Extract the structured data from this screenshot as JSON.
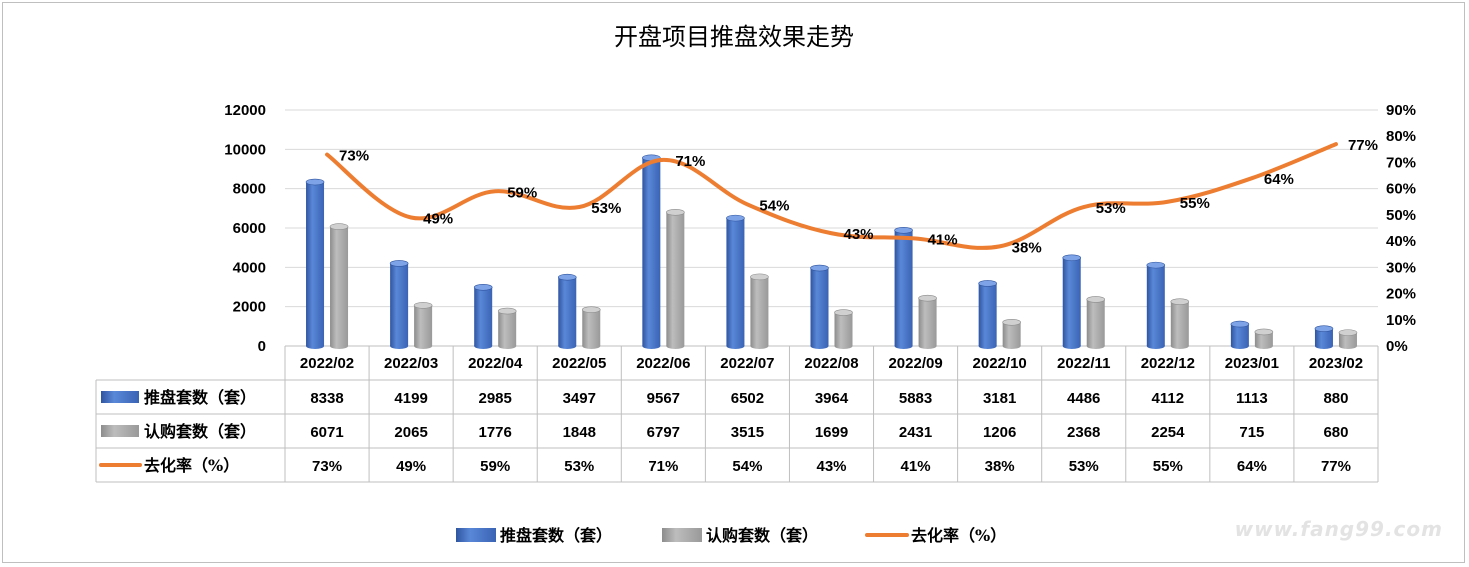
{
  "chart_data": {
    "type": "bar",
    "title": "开盘项目推盘效果走势",
    "categories": [
      "2022/02",
      "2022/03",
      "2022/04",
      "2022/05",
      "2022/06",
      "2022/07",
      "2022/08",
      "2022/09",
      "2022/10",
      "2022/11",
      "2022/12",
      "2023/01",
      "2023/02"
    ],
    "series": [
      {
        "name": "推盘套数（套）",
        "type": "bar",
        "axis": "left",
        "color": "#4472c4",
        "values": [
          8338,
          4199,
          2985,
          3497,
          9567,
          6502,
          3964,
          5883,
          3181,
          4486,
          4112,
          1113,
          880
        ]
      },
      {
        "name": "认购套数（套）",
        "type": "bar",
        "axis": "left",
        "color": "#a5a5a5",
        "values": [
          6071,
          2065,
          1776,
          1848,
          6797,
          3515,
          1699,
          2431,
          1206,
          2368,
          2254,
          715,
          680
        ]
      },
      {
        "name": "去化率（%）",
        "type": "line",
        "axis": "right",
        "color": "#ed7d31",
        "values": [
          73,
          49,
          59,
          53,
          71,
          54,
          43,
          41,
          38,
          53,
          55,
          64,
          77
        ],
        "labels": [
          "73%",
          "49%",
          "59%",
          "53%",
          "71%",
          "54%",
          "43%",
          "41%",
          "38%",
          "53%",
          "55%",
          "64%",
          "77%"
        ]
      }
    ],
    "y_left": {
      "min": 0,
      "max": 12000,
      "ticks": [
        "0",
        "2000",
        "4000",
        "6000",
        "8000",
        "10000",
        "12000"
      ]
    },
    "y_right": {
      "min": 0,
      "max": 90,
      "ticks": [
        "0%",
        "10%",
        "20%",
        "30%",
        "40%",
        "50%",
        "60%",
        "70%",
        "80%",
        "90%"
      ]
    },
    "grid": true,
    "legend_position": "bottom",
    "data_table": true
  },
  "watermark": "www.fang99.com"
}
